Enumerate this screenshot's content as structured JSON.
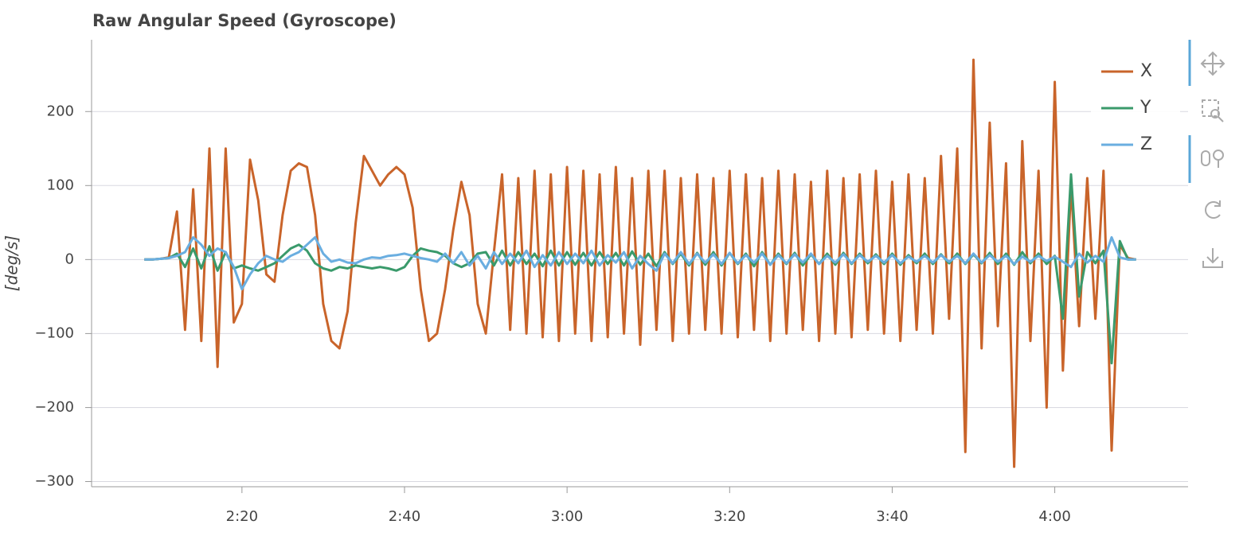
{
  "chart_data": {
    "type": "line",
    "title": "Raw Angular Speed (Gyroscope)",
    "y_label": "[deg/s]",
    "x": [
      128,
      129,
      130,
      131,
      132,
      133,
      134,
      135,
      136,
      137,
      138,
      139,
      140,
      141,
      142,
      143,
      144,
      145,
      146,
      147,
      148,
      149,
      150,
      151,
      152,
      153,
      154,
      155,
      156,
      157,
      158,
      159,
      160,
      161,
      162,
      163,
      164,
      165,
      166,
      167,
      168,
      169,
      170,
      171,
      172,
      173,
      174,
      175,
      176,
      177,
      178,
      179,
      180,
      181,
      182,
      183,
      184,
      185,
      186,
      187,
      188,
      189,
      190,
      191,
      192,
      193,
      194,
      195,
      196,
      197,
      198,
      199,
      200,
      201,
      202,
      203,
      204,
      205,
      206,
      207,
      208,
      209,
      210,
      211,
      212,
      213,
      214,
      215,
      216,
      217,
      218,
      219,
      220,
      221,
      222,
      223,
      224,
      225,
      226,
      227,
      228,
      229,
      230,
      231,
      232,
      233,
      234,
      235,
      236,
      237,
      238,
      239,
      240,
      241,
      242,
      243,
      244,
      245,
      246,
      247,
      248,
      249,
      250
    ],
    "series": [
      {
        "name": "X",
        "color": "#c9642a",
        "values": [
          0,
          0,
          1,
          3,
          65,
          -95,
          95,
          -110,
          150,
          -145,
          150,
          -85,
          -60,
          135,
          80,
          -20,
          -30,
          60,
          120,
          130,
          125,
          60,
          -60,
          -110,
          -120,
          -70,
          50,
          140,
          120,
          100,
          115,
          125,
          115,
          70,
          -40,
          -110,
          -100,
          -40,
          40,
          105,
          60,
          -60,
          -100,
          10,
          115,
          -95,
          110,
          -100,
          120,
          -105,
          115,
          -110,
          125,
          -100,
          120,
          -110,
          115,
          -105,
          125,
          -100,
          110,
          -115,
          120,
          -95,
          120,
          -110,
          110,
          -100,
          115,
          -95,
          110,
          -100,
          120,
          -105,
          115,
          -95,
          110,
          -110,
          120,
          -100,
          115,
          -95,
          105,
          -110,
          120,
          -100,
          110,
          -105,
          115,
          -95,
          120,
          -100,
          105,
          -110,
          115,
          -95,
          110,
          -100,
          140,
          -80,
          150,
          -260,
          270,
          -120,
          185,
          -90,
          130,
          -280,
          160,
          -110,
          120,
          -200,
          240,
          -150,
          100,
          -90,
          110,
          -80,
          120,
          -258,
          20,
          2,
          0
        ]
      },
      {
        "name": "Y",
        "color": "#3a9a6b",
        "values": [
          0,
          0,
          1,
          2,
          8,
          -10,
          15,
          -12,
          18,
          -15,
          10,
          -12,
          -8,
          -12,
          -15,
          -10,
          -5,
          5,
          15,
          20,
          12,
          -5,
          -12,
          -15,
          -10,
          -12,
          -8,
          -10,
          -12,
          -10,
          -12,
          -15,
          -10,
          5,
          15,
          12,
          10,
          5,
          -5,
          -10,
          -5,
          8,
          10,
          -8,
          12,
          -8,
          10,
          -6,
          8,
          -9,
          12,
          -8,
          10,
          -7,
          9,
          -8,
          10,
          -6,
          9,
          -8,
          11,
          -7,
          8,
          -9,
          10,
          -6,
          8,
          -8,
          9,
          -7,
          10,
          -8,
          9,
          -6,
          8,
          -9,
          10,
          -7,
          8,
          -6,
          9,
          -8,
          7,
          -6,
          8,
          -7,
          9,
          -6,
          8,
          -5,
          7,
          -6,
          8,
          -7,
          6,
          -5,
          8,
          -6,
          7,
          -5,
          8,
          -6,
          7,
          -5,
          9,
          -6,
          8,
          -7,
          10,
          -5,
          8,
          -6,
          5,
          -80,
          115,
          -50,
          10,
          -5,
          12,
          -140,
          25,
          0,
          0
        ]
      },
      {
        "name": "Z",
        "color": "#6aaee0",
        "values": [
          0,
          0,
          1,
          2,
          5,
          10,
          30,
          20,
          5,
          15,
          10,
          -10,
          -40,
          -20,
          -5,
          5,
          0,
          -3,
          5,
          10,
          20,
          30,
          8,
          -3,
          0,
          -4,
          -5,
          0,
          3,
          2,
          5,
          6,
          8,
          5,
          2,
          0,
          -3,
          8,
          -5,
          10,
          -8,
          5,
          -12,
          10,
          -6,
          8,
          -5,
          12,
          -10,
          6,
          -8,
          10,
          -6,
          8,
          -5,
          12,
          -8,
          6,
          -4,
          10,
          -12,
          5,
          -6,
          -15,
          8,
          -5,
          10,
          -6,
          8,
          -4,
          7,
          -6,
          9,
          -5,
          6,
          -4,
          8,
          -7,
          6,
          -5,
          7,
          -4,
          8,
          -6,
          5,
          -4,
          7,
          -5,
          6,
          -3,
          5,
          -4,
          6,
          -5,
          4,
          -3,
          5,
          -4,
          6,
          -3,
          5,
          -5,
          8,
          -4,
          6,
          -3,
          5,
          -6,
          4,
          -3,
          5,
          -2,
          4,
          -3,
          -10,
          8,
          -4,
          5,
          -3,
          30,
          3,
          0,
          0
        ]
      }
    ],
    "xlim": [
      121.5,
      256.4
    ],
    "xticks": [
      {
        "value": 140,
        "label": "2:20"
      },
      {
        "value": 160,
        "label": "2:40"
      },
      {
        "value": 180,
        "label": "3:00"
      },
      {
        "value": 200,
        "label": "3:20"
      },
      {
        "value": 220,
        "label": "3:40"
      },
      {
        "value": 240,
        "label": "4:00"
      }
    ],
    "ylim": [
      -307,
      297
    ],
    "yticks": [
      {
        "value": -300,
        "label": "−300"
      },
      {
        "value": -200,
        "label": "−200"
      },
      {
        "value": -100,
        "label": "−100"
      },
      0,
      100,
      200
    ],
    "grid": true,
    "legend_position": "top-right"
  }
}
